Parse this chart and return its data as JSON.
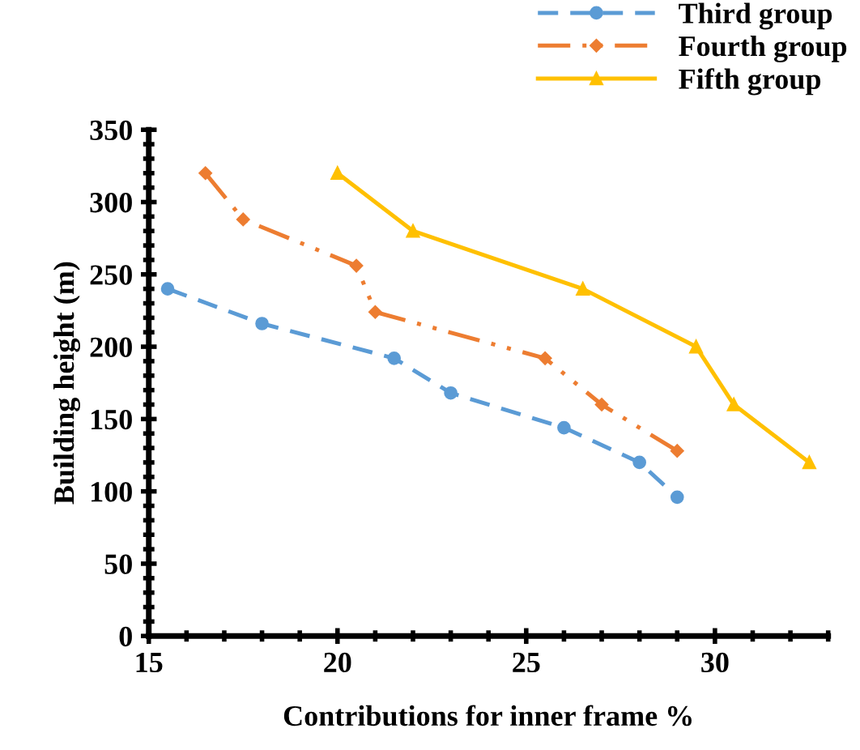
{
  "chart_data": {
    "type": "line",
    "xlabel": "Contributions for inner frame %",
    "ylabel": "Building height (m)",
    "xlim": [
      15,
      33
    ],
    "xticks": [
      15,
      20,
      25,
      30
    ],
    "ylim": [
      0,
      350
    ],
    "yticks": [
      0,
      50,
      100,
      150,
      200,
      250,
      300,
      350
    ],
    "grid": false,
    "legend": "top right",
    "series": [
      {
        "name": "Third group",
        "color": "#5b9bd5",
        "marker": "circle",
        "line_style": "dashed",
        "x": [
          15.5,
          18,
          21.5,
          23,
          26,
          28,
          29
        ],
        "values": [
          240,
          216,
          192,
          168,
          144,
          120,
          96
        ]
      },
      {
        "name": "Fourth group",
        "color": "#ed7d31",
        "marker": "diamond",
        "line_style": "dashdot",
        "x": [
          16.5,
          17.5,
          20.5,
          21,
          25.5,
          27,
          29
        ],
        "values": [
          320,
          288,
          256,
          224,
          192,
          160,
          128
        ]
      },
      {
        "name": "Fifth group",
        "color": "#ffc000",
        "marker": "triangle",
        "line_style": "solid",
        "x": [
          20,
          22,
          26.5,
          29.5,
          30.5,
          32.5
        ],
        "values": [
          320,
          280,
          240,
          200,
          160,
          120
        ]
      }
    ]
  }
}
